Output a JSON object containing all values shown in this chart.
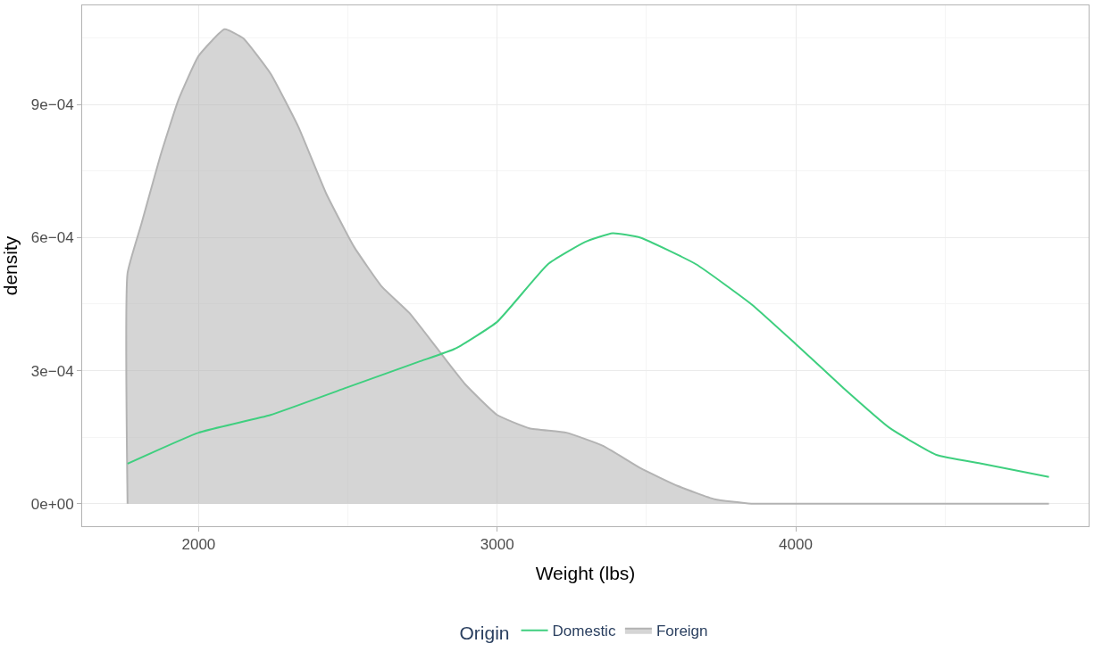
{
  "chart_data": {
    "type": "area",
    "xlabel": "Weight (lbs)",
    "ylabel": "density",
    "legend_title": "Origin",
    "legend": "bottom",
    "grid": true,
    "xlim": [
      1610,
      4981
    ],
    "xticks": [
      2000,
      3000,
      4000
    ],
    "ylim": [
      -5.1e-05,
      0.001124
    ],
    "yticks": [
      {
        "value": 0,
        "label": "0e+00"
      },
      {
        "value": 0.0003,
        "label": "3e−04"
      },
      {
        "value": 0.0006,
        "label": "6e−04"
      },
      {
        "value": 0.0009,
        "label": "9e−04"
      }
    ],
    "series": [
      {
        "name": "Domestic",
        "type": "line",
        "color": "#3fcf7f",
        "x": [
          1762,
          2000,
          2241,
          2489,
          2737,
          2861,
          3000,
          3170,
          3294,
          3387,
          3480,
          3666,
          3851,
          4000,
          4161,
          4316,
          4471,
          4625,
          4848
        ],
        "values": [
          9e-05,
          0.00016,
          0.0002,
          0.00026,
          0.00032,
          0.00035,
          0.00041,
          0.00054,
          0.00059,
          0.00061,
          0.0006,
          0.00054,
          0.00045,
          0.00036,
          0.00026,
          0.00017,
          0.00011,
          9e-05,
          6e-05
        ]
      },
      {
        "name": "Foreign",
        "color": "#b3b3b3",
        "x": [
          1762,
          1762,
          1808,
          1870,
          1932,
          2000,
          2087,
          2149,
          2241,
          2334,
          2427,
          2520,
          2613,
          2706,
          2799,
          2892,
          3000,
          3108,
          3232,
          3356,
          3480,
          3604,
          3728,
          3851,
          4000,
          4848
        ],
        "values": [
          0,
          0.00052,
          0.00063,
          0.00078,
          0.00091,
          0.00101,
          0.00107,
          0.00105,
          0.00097,
          0.00085,
          0.0007,
          0.00058,
          0.00049,
          0.00043,
          0.00035,
          0.00027,
          0.0002,
          0.00017,
          0.00016,
          0.00013,
          8e-05,
          4e-05,
          1e-05,
          0,
          0,
          0
        ]
      }
    ]
  }
}
